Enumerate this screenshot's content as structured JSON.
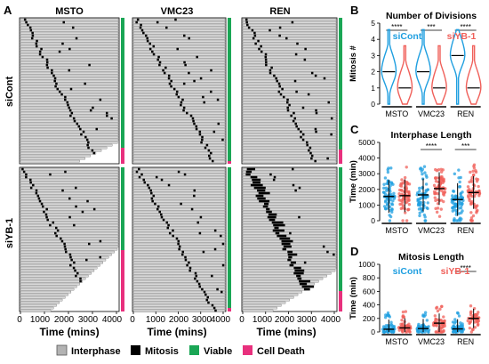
{
  "panel_letters": {
    "a": "A",
    "b": "B",
    "c": "C",
    "d": "D"
  },
  "raster": {
    "columns": [
      "MSTO",
      "VMC23",
      "REN"
    ],
    "rows": [
      "siCont",
      "siYB-1"
    ],
    "x_ticks": [
      0,
      1000,
      2000,
      3000,
      4000
    ],
    "x_label": "Time (mins)",
    "tick_labels": [
      "0",
      "1000",
      "2000",
      "3000",
      "4000"
    ]
  },
  "legend": {
    "items": [
      {
        "label": "Interphase",
        "color": "#b3b3b3"
      },
      {
        "label": "Mitosis",
        "color": "#000000"
      },
      {
        "label": "Viable",
        "color": "#1aa655"
      },
      {
        "label": "Cell Death",
        "color": "#e8307d"
      }
    ]
  },
  "colors": {
    "siCont": "#1f9fe0",
    "siYB1": "#f0605a",
    "viable": "#1aa655",
    "death": "#e8307d",
    "interphase": "#b3b3b3",
    "mitosis": "#000000"
  },
  "chart_data": [
    {
      "type": "violin",
      "panel": "B",
      "title": "Number of Divisions",
      "ylabel": "Mitosis #",
      "ylim": [
        0,
        5
      ],
      "yticks": [
        0,
        1,
        2,
        3,
        4,
        5
      ],
      "categories": [
        "MSTO",
        "VMC23",
        "REN"
      ],
      "legend": [
        "siCont",
        "siYB-1"
      ],
      "series": [
        {
          "name": "siCont",
          "median": [
            2,
            2,
            3
          ]
        },
        {
          "name": "siYB-1",
          "median": [
            1,
            1,
            1
          ]
        }
      ],
      "significance": [
        "****",
        "***",
        "****"
      ]
    },
    {
      "type": "scatter",
      "panel": "C",
      "title": "Interphase Length",
      "ylabel": "Time (min)",
      "ylim": [
        0,
        5000
      ],
      "yticks": [
        0,
        1000,
        2000,
        3000,
        4000,
        5000
      ],
      "categories": [
        "MSTO",
        "VMC23",
        "REN"
      ],
      "series": [
        {
          "name": "siCont",
          "mean": [
            1550,
            1650,
            1350
          ]
        },
        {
          "name": "siYB-1",
          "mean": [
            1600,
            2050,
            1800
          ]
        }
      ],
      "significance": [
        "",
        "****",
        "***"
      ]
    },
    {
      "type": "scatter",
      "panel": "D",
      "title": "Mitosis Length",
      "ylabel": "Time (min)",
      "ylim": [
        0,
        1000
      ],
      "yticks": [
        0,
        200,
        400,
        600,
        800,
        1000
      ],
      "categories": [
        "MSTO",
        "VMC23",
        "REN"
      ],
      "legend": [
        "siCont",
        "siYB-1"
      ],
      "series": [
        {
          "name": "siCont",
          "mean": [
            40,
            50,
            45
          ]
        },
        {
          "name": "siYB-1",
          "mean": [
            60,
            130,
            200
          ]
        }
      ],
      "significance": [
        "",
        "",
        "****"
      ]
    }
  ]
}
